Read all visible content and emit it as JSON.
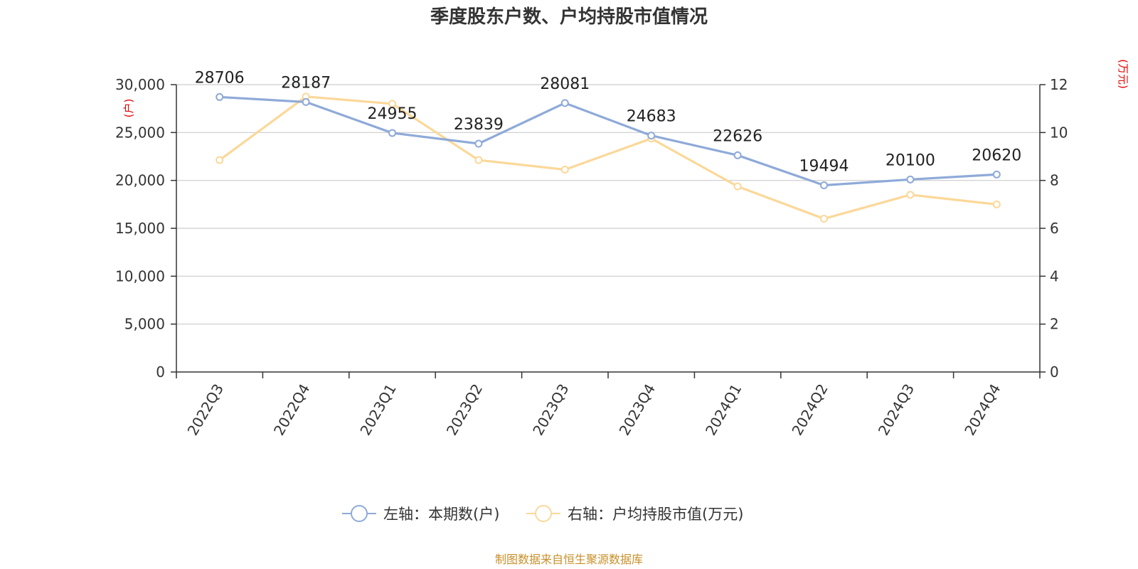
{
  "chart_data": {
    "type": "line",
    "title": "季度股东户数、户均持股市值情况",
    "categories": [
      "2022Q3",
      "2022Q4",
      "2023Q1",
      "2023Q2",
      "2023Q3",
      "2023Q4",
      "2024Q1",
      "2024Q2",
      "2024Q3",
      "2024Q4"
    ],
    "series": [
      {
        "name": "左轴：本期数(户)",
        "axis": "left",
        "color": "#8eaad8",
        "values": [
          28706,
          28187,
          24955,
          23839,
          28081,
          24683,
          22626,
          19494,
          20100,
          20620
        ],
        "labels": [
          "28706",
          "28187",
          "24955",
          "23839",
          "28081",
          "24683",
          "22626",
          "19494",
          "20100",
          "20620"
        ]
      },
      {
        "name": "右轴：户均持股市值(万元)",
        "axis": "right",
        "color": "#fbd899",
        "values": [
          8.85,
          11.5,
          11.2,
          8.85,
          8.45,
          9.75,
          7.75,
          6.4,
          7.4,
          7.0
        ]
      }
    ],
    "y_left": {
      "unit": "(户)",
      "lim": [
        0,
        30000
      ],
      "ticks": [
        0,
        5000,
        10000,
        15000,
        20000,
        25000,
        30000
      ],
      "tick_labels": [
        "0",
        "5,000",
        "10,000",
        "15,000",
        "20,000",
        "25,000",
        "30,000"
      ]
    },
    "y_right": {
      "unit": "(万元)",
      "lim": [
        0,
        12
      ],
      "ticks": [
        0,
        2,
        4,
        6,
        8,
        10,
        12
      ],
      "tick_labels": [
        "0",
        "2",
        "4",
        "6",
        "8",
        "10",
        "12"
      ]
    },
    "grid": true,
    "legend_position": "bottom",
    "source": "制图数据来自恒生聚源数据库"
  }
}
